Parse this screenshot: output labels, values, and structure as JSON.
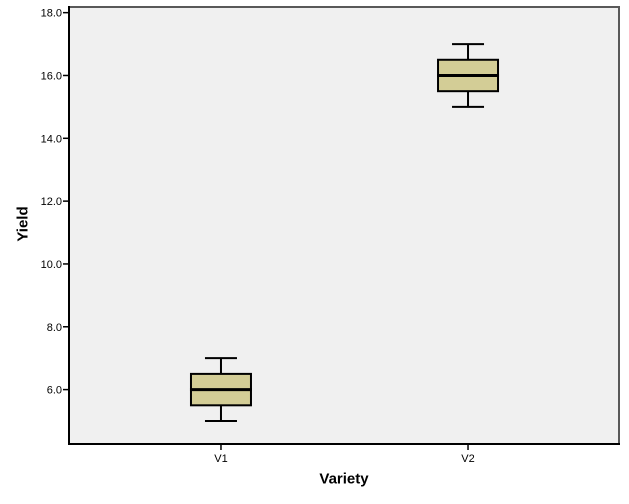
{
  "chart_data": {
    "type": "boxplot",
    "title": "",
    "xlabel": "Variety",
    "ylabel": "Yield",
    "categories": [
      "V1",
      "V2"
    ],
    "series": [
      {
        "category": "V1",
        "min": 5.0,
        "q1": 5.5,
        "median": 6.0,
        "q3": 6.5,
        "max": 7.0
      },
      {
        "category": "V2",
        "min": 15.0,
        "q1": 15.5,
        "median": 16.0,
        "q3": 16.5,
        "max": 17.0
      }
    ],
    "yticks": [
      6.0,
      8.0,
      10.0,
      12.0,
      14.0,
      16.0,
      18.0
    ],
    "ytick_labels": [
      "6.0",
      "8.0",
      "10.0",
      "12.0",
      "14.0",
      "16.0",
      "18.0"
    ],
    "ylim": [
      4.3,
      18.18
    ],
    "grid": false,
    "legend": "none",
    "colors": {
      "box_fill": "#d3cd96",
      "box_border": "#000000",
      "median_line": "#000000",
      "whisker": "#000000",
      "plot_background": "#f0f0f0",
      "frame_border": "#595959",
      "axis_line": "#000000",
      "tick_label": "#000000",
      "page_background": "#ffffff"
    }
  }
}
